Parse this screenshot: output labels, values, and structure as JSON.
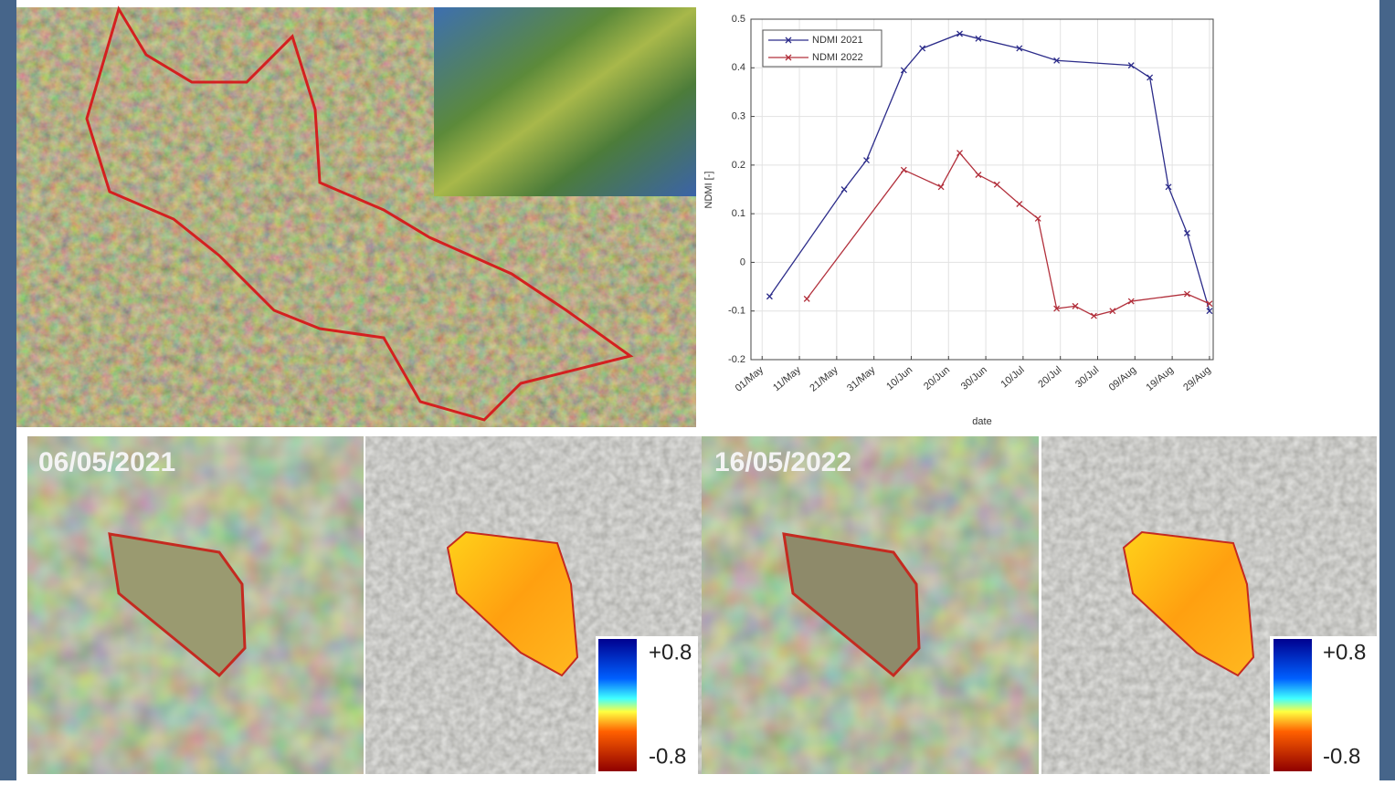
{
  "chart_data": {
    "type": "line",
    "xlabel": "date",
    "ylabel": "NDMI [-]",
    "xlim": [
      "28/Apr",
      "30/Aug"
    ],
    "xticks": [
      "01/May",
      "11/May",
      "21/May",
      "31/May",
      "10/Jun",
      "20/Jun",
      "30/Jun",
      "10/Jul",
      "20/Jul",
      "30/Jul",
      "09/Aug",
      "19/Aug",
      "29/Aug"
    ],
    "ylim": [
      -0.2,
      0.5
    ],
    "yticks": [
      0.5,
      0.4,
      0.3,
      0.2,
      0.1,
      0,
      -0.1,
      -0.2
    ],
    "grid": true,
    "legend": "upper left",
    "series": [
      {
        "name": "NDMI 2021",
        "color": "#2c2c8a",
        "x": [
          "03/May",
          "23/May",
          "29/May",
          "08/Jun",
          "13/Jun",
          "23/Jun",
          "28/Jun",
          "09/Jul",
          "19/Jul",
          "08/Aug",
          "13/Aug",
          "18/Aug",
          "23/Aug",
          "29/Aug"
        ],
        "values": [
          -0.07,
          0.15,
          0.21,
          0.395,
          0.44,
          0.47,
          0.46,
          0.44,
          0.415,
          0.405,
          0.38,
          0.155,
          0.06,
          -0.1
        ]
      },
      {
        "name": "NDMI 2022",
        "color": "#b2303c",
        "x": [
          "13/May",
          "08/Jun",
          "18/Jun",
          "23/Jun",
          "28/Jun",
          "03/Jul",
          "09/Jul",
          "14/Jul",
          "19/Jul",
          "24/Jul",
          "29/Jul",
          "03/Aug",
          "08/Aug",
          "23/Aug",
          "29/Aug"
        ],
        "values": [
          -0.075,
          0.19,
          0.155,
          0.225,
          0.18,
          0.16,
          0.12,
          0.09,
          -0.095,
          -0.09,
          -0.11,
          -0.1,
          -0.08,
          -0.065,
          -0.085
        ]
      }
    ]
  },
  "panels": [
    {
      "label": "06/05/2021"
    },
    {
      "label": "16/05/2022"
    }
  ],
  "colorbar": {
    "max_label": "+0.8",
    "min_label": "-0.8"
  }
}
